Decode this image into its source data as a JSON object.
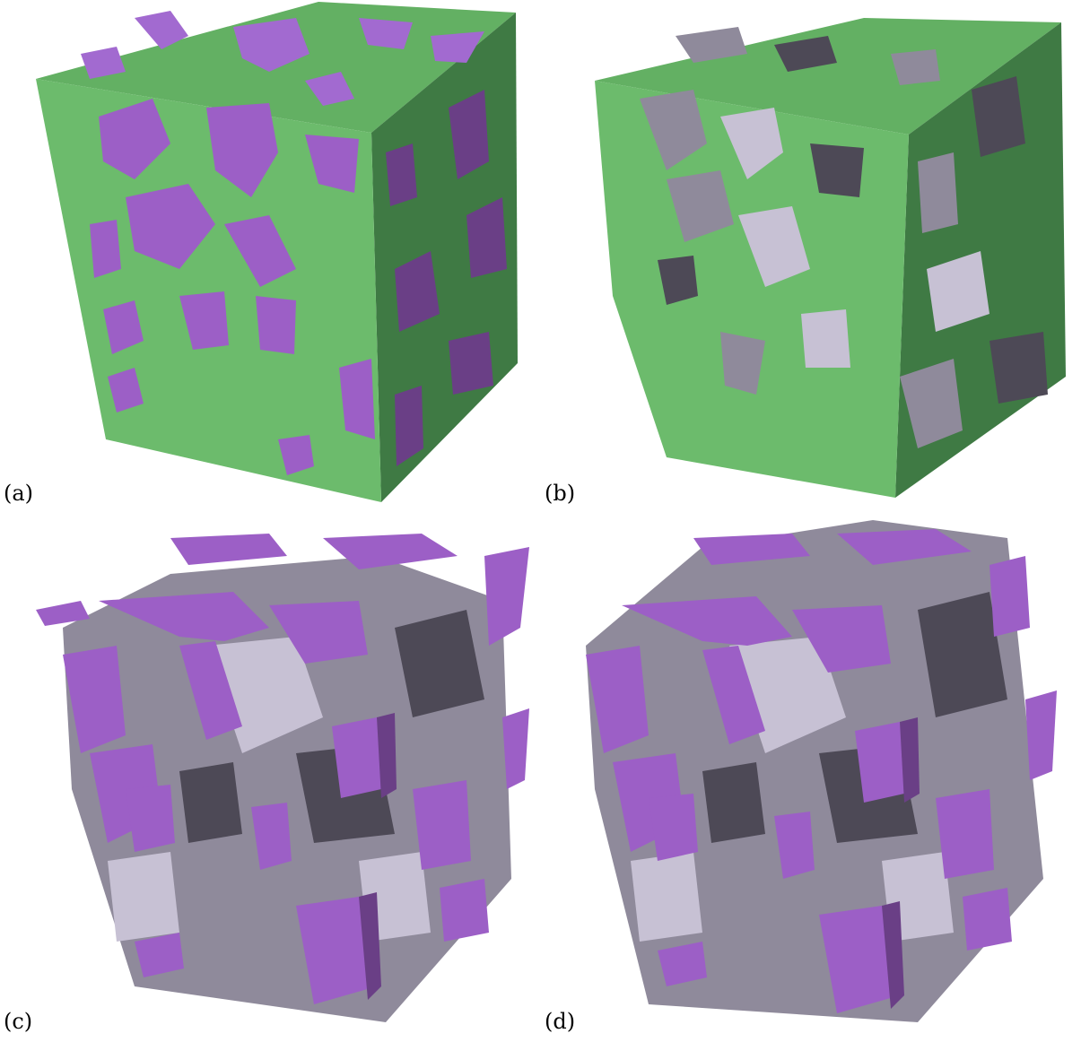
{
  "panels": [
    {
      "id": "a",
      "label": "(a)"
    },
    {
      "id": "b",
      "label": "(b)"
    },
    {
      "id": "c",
      "label": "(c)"
    },
    {
      "id": "d",
      "label": "(d)"
    }
  ],
  "colors": {
    "matrix_front": "#6cbb6c",
    "matrix_side": "#3f7a44",
    "matrix_top": "#63b063",
    "phase_front": "#9c5fc6",
    "phase_side": "#6a3f86",
    "phase_top": "#a26ad0",
    "grain_light": "#c7c1d4",
    "grain_mid": "#8f8a9b",
    "grain_dark": "#4d4956",
    "background": "#ffffff"
  }
}
